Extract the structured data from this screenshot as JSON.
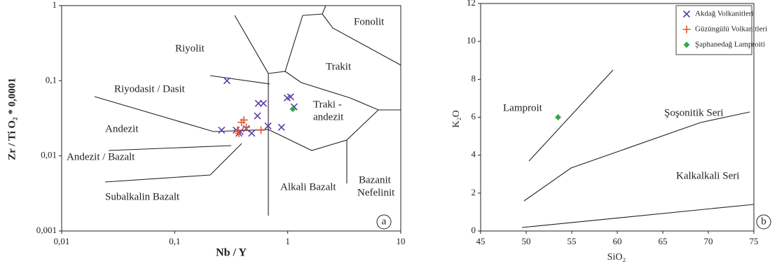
{
  "chart_data": [
    {
      "type": "scatter",
      "xscale": "log",
      "yscale": "log",
      "x_label": "Nb / Y",
      "y_label": "Zr / Ti O₂ * 0,0001",
      "xlim": [
        0.01,
        10
      ],
      "ylim": [
        0.001,
        1
      ],
      "xticks": [
        {
          "value": 0.01,
          "label": "0,01"
        },
        {
          "value": 0.1,
          "label": "0,1"
        },
        1,
        10
      ],
      "yticks": [
        {
          "value": 0.001,
          "label": "0,001"
        },
        {
          "value": 0.01,
          "label": "0,01"
        },
        {
          "value": 0.1,
          "label": "0,1"
        },
        1
      ],
      "annotations": [
        "Riyolit",
        "Riyodasit / Dasit",
        "Andezit",
        "Andezit / Bazalt",
        "Subalkalin Bazalt",
        "Alkali Bazalt",
        "Bazanit",
        "Nefelinit",
        "Traki -",
        "andezit",
        "Trakit",
        "Fonolit",
        "a"
      ],
      "series": [
        {
          "name": "Akdağ Volkanitleri",
          "color": "#5b3fa6",
          "marker": "x",
          "x": [
            0.29,
            0.55,
            0.61,
            0.54,
            0.67,
            0.48,
            0.99,
            1.06,
            1.14,
            0.88,
            0.26,
            0.35,
            0.43,
            0.38,
            0.37
          ],
          "values": [
            0.1,
            0.05,
            0.05,
            0.034,
            0.025,
            0.02,
            0.059,
            0.061,
            0.045,
            0.024,
            0.022,
            0.022,
            0.023,
            0.021,
            0.02
          ]
        },
        {
          "name": "Güzüngülü Volkanitleri",
          "color": "#e8562a",
          "marker": "+",
          "x": [
            0.39,
            0.41,
            0.36,
            0.37,
            0.58,
            0.43
          ],
          "values": [
            0.028,
            0.03,
            0.022,
            0.02,
            0.022,
            0.024
          ]
        },
        {
          "name": "Şaphanedağ Lamproiti",
          "color": "#3aa84a",
          "marker": "diamond",
          "x": [
            1.11
          ],
          "values": [
            0.042
          ]
        }
      ]
    },
    {
      "type": "scatter",
      "x_label": "SiO₂",
      "y_label": "K₂O",
      "xlim": [
        45,
        75
      ],
      "ylim": [
        0,
        12
      ],
      "xticks": [
        45,
        50,
        55,
        60,
        65,
        70,
        75
      ],
      "yticks": [
        0,
        2,
        4,
        6,
        8,
        10,
        12
      ],
      "annotations": [
        "Lamproit",
        "Şoşonitik Seri",
        "Kalkalkali Seri",
        "b"
      ],
      "series": [
        {
          "color": "#3aa84a",
          "marker": "diamond",
          "x": [
            53.5
          ],
          "values": [
            6
          ]
        }
      ]
    }
  ]
}
